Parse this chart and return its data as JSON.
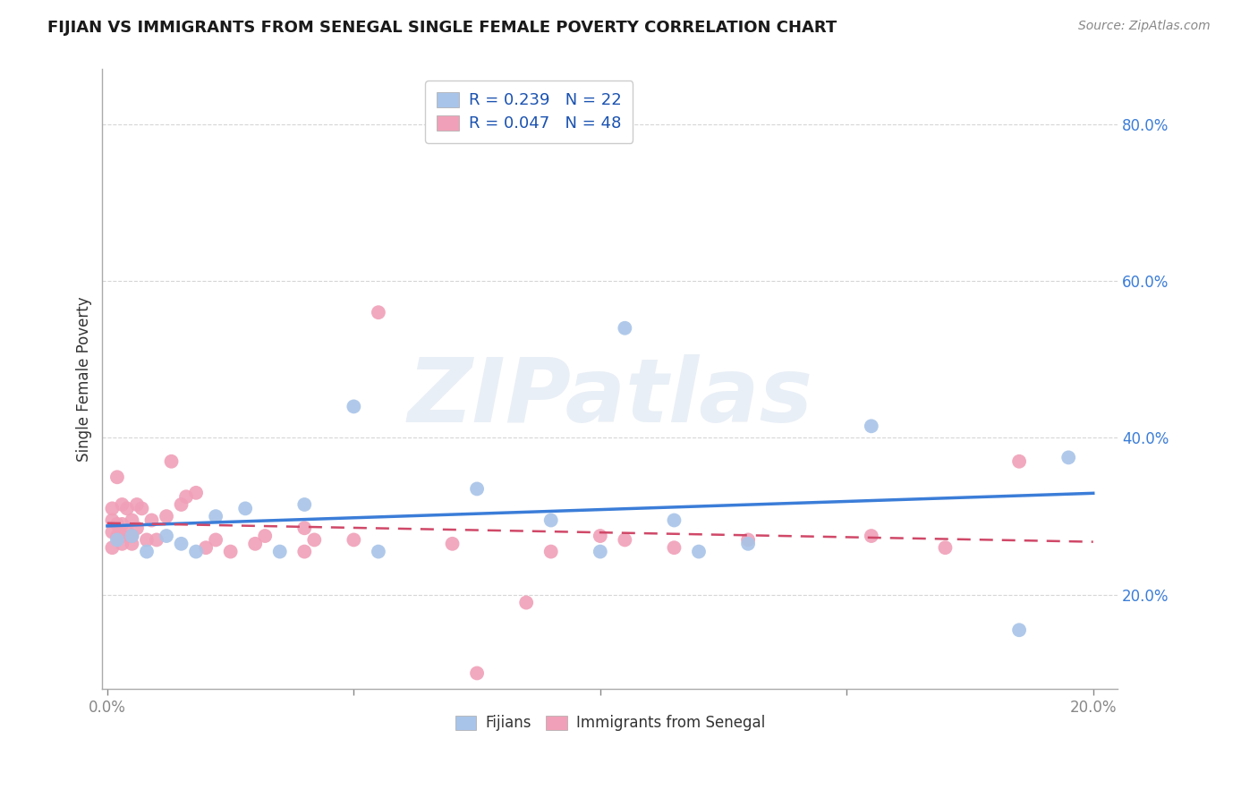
{
  "title": "FIJIAN VS IMMIGRANTS FROM SENEGAL SINGLE FEMALE POVERTY CORRELATION CHART",
  "source": "Source: ZipAtlas.com",
  "ylabel": "Single Female Poverty",
  "xlim": [
    -0.001,
    0.205
  ],
  "ylim": [
    0.08,
    0.87
  ],
  "fijian_R": 0.239,
  "fijian_N": 22,
  "senegal_R": 0.047,
  "senegal_N": 48,
  "fijian_color": "#a8c4e8",
  "senegal_color": "#f0a0b8",
  "fijian_line_color": "#3b7dd8",
  "senegal_line_color": "#d04868",
  "fijian_x": [
    0.002,
    0.005,
    0.008,
    0.012,
    0.015,
    0.018,
    0.022,
    0.028,
    0.035,
    0.04,
    0.05,
    0.055,
    0.075,
    0.09,
    0.1,
    0.105,
    0.115,
    0.12,
    0.13,
    0.155,
    0.185,
    0.195
  ],
  "fijian_y": [
    0.27,
    0.275,
    0.255,
    0.275,
    0.265,
    0.255,
    0.3,
    0.31,
    0.255,
    0.315,
    0.44,
    0.255,
    0.335,
    0.295,
    0.255,
    0.54,
    0.295,
    0.255,
    0.265,
    0.415,
    0.155,
    0.375
  ],
  "senegal_x": [
    0.001,
    0.001,
    0.001,
    0.001,
    0.002,
    0.002,
    0.002,
    0.003,
    0.003,
    0.003,
    0.003,
    0.004,
    0.004,
    0.005,
    0.005,
    0.005,
    0.006,
    0.006,
    0.007,
    0.008,
    0.009,
    0.01,
    0.012,
    0.013,
    0.015,
    0.016,
    0.018,
    0.02,
    0.022,
    0.025,
    0.03,
    0.032,
    0.04,
    0.04,
    0.042,
    0.05,
    0.055,
    0.07,
    0.075,
    0.085,
    0.09,
    0.1,
    0.105,
    0.115,
    0.13,
    0.155,
    0.17,
    0.185
  ],
  "senegal_y": [
    0.26,
    0.28,
    0.295,
    0.31,
    0.275,
    0.29,
    0.35,
    0.265,
    0.275,
    0.29,
    0.315,
    0.28,
    0.31,
    0.265,
    0.275,
    0.295,
    0.285,
    0.315,
    0.31,
    0.27,
    0.295,
    0.27,
    0.3,
    0.37,
    0.315,
    0.325,
    0.33,
    0.26,
    0.27,
    0.255,
    0.265,
    0.275,
    0.285,
    0.255,
    0.27,
    0.27,
    0.56,
    0.265,
    0.1,
    0.19,
    0.255,
    0.275,
    0.27,
    0.26,
    0.27,
    0.275,
    0.26,
    0.37
  ],
  "watermark_text": "ZIPatlas",
  "background_color": "#ffffff",
  "grid_color": "#cccccc"
}
